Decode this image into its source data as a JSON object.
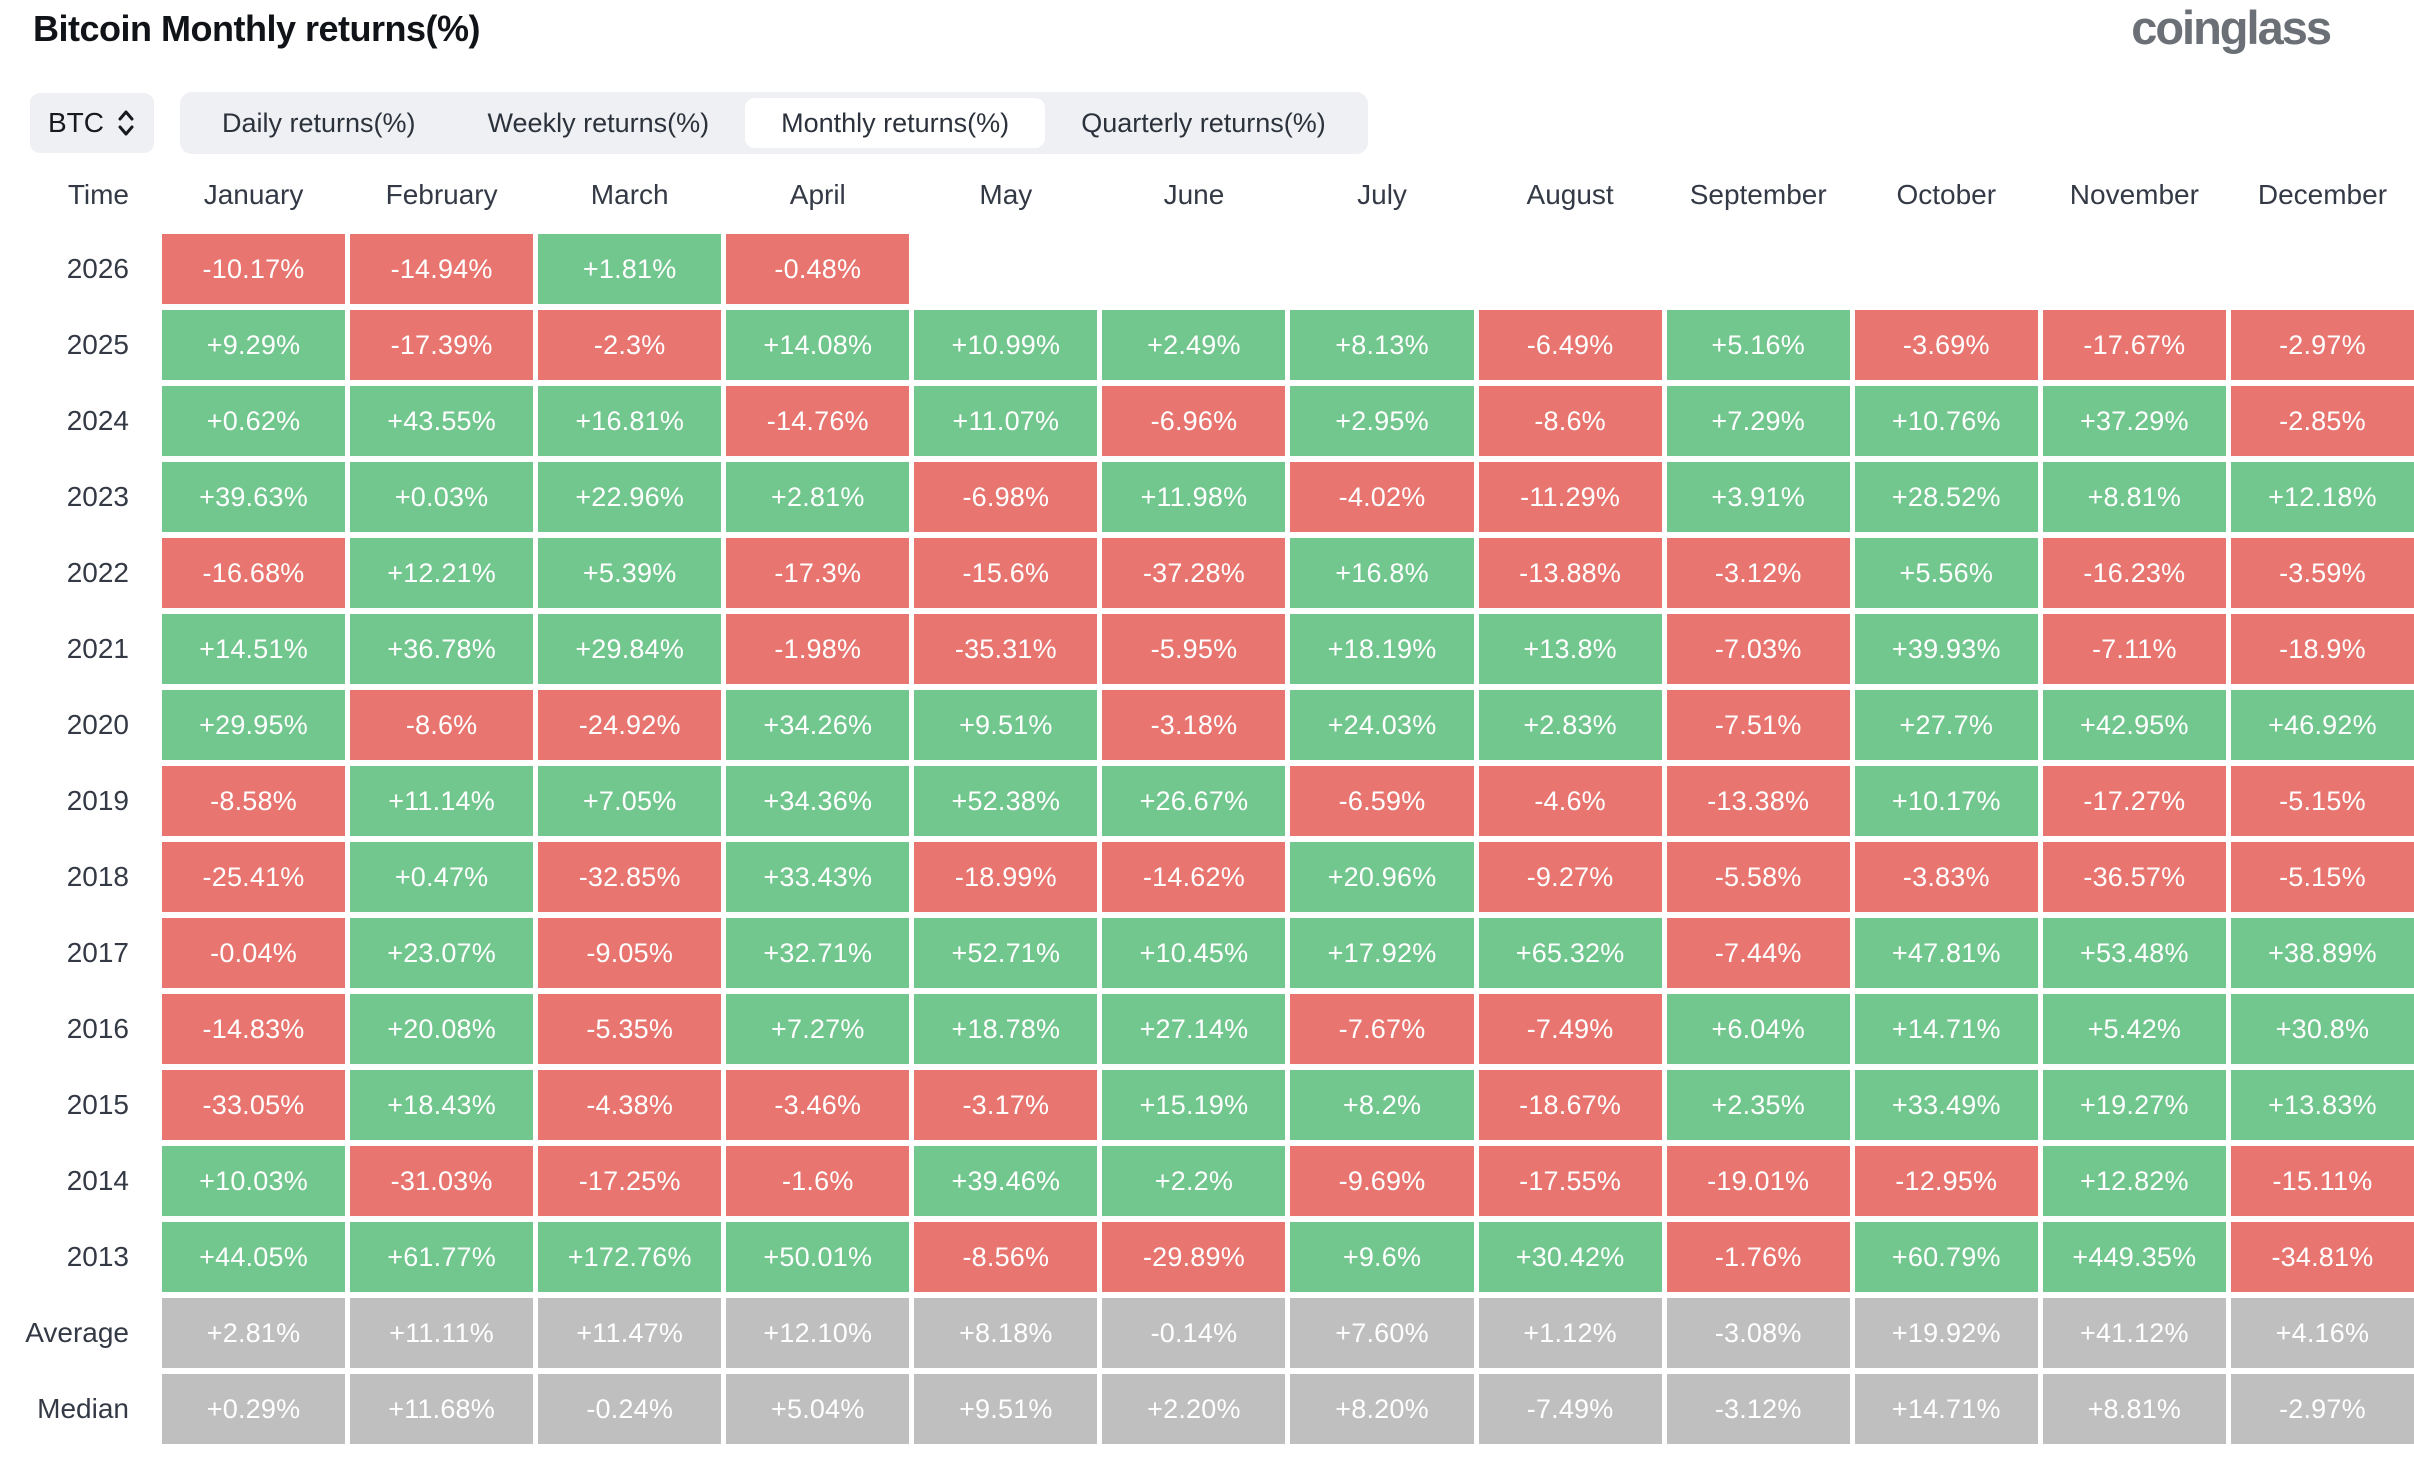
{
  "header": {
    "title": "Bitcoin Monthly returns(%)",
    "logo_text": "coinglass"
  },
  "controls": {
    "symbol_selector": {
      "label": "BTC"
    },
    "tabs": [
      {
        "label": "Daily returns(%)"
      },
      {
        "label": "Weekly returns(%)"
      },
      {
        "label": "Monthly returns(%)"
      },
      {
        "label": "Quarterly returns(%)"
      }
    ],
    "active_tab_index": 2
  },
  "colors": {
    "positive": "#72c78e",
    "negative": "#e8756f",
    "summary": "#bfbfbf",
    "cell_text": "#ffffff"
  },
  "chart_data": {
    "type": "heatmap",
    "title": "Bitcoin Monthly returns(%)",
    "columns": [
      "Time",
      "January",
      "February",
      "March",
      "April",
      "May",
      "June",
      "July",
      "August",
      "September",
      "October",
      "November",
      "December"
    ],
    "rows": [
      {
        "label": "2026",
        "kind": "year",
        "values": [
          "-10.17%",
          "-14.94%",
          "+1.81%",
          "-0.48%",
          null,
          null,
          null,
          null,
          null,
          null,
          null,
          null
        ]
      },
      {
        "label": "2025",
        "kind": "year",
        "values": [
          "+9.29%",
          "-17.39%",
          "-2.3%",
          "+14.08%",
          "+10.99%",
          "+2.49%",
          "+8.13%",
          "-6.49%",
          "+5.16%",
          "-3.69%",
          "-17.67%",
          "-2.97%"
        ]
      },
      {
        "label": "2024",
        "kind": "year",
        "values": [
          "+0.62%",
          "+43.55%",
          "+16.81%",
          "-14.76%",
          "+11.07%",
          "-6.96%",
          "+2.95%",
          "-8.6%",
          "+7.29%",
          "+10.76%",
          "+37.29%",
          "-2.85%"
        ]
      },
      {
        "label": "2023",
        "kind": "year",
        "values": [
          "+39.63%",
          "+0.03%",
          "+22.96%",
          "+2.81%",
          "-6.98%",
          "+11.98%",
          "-4.02%",
          "-11.29%",
          "+3.91%",
          "+28.52%",
          "+8.81%",
          "+12.18%"
        ]
      },
      {
        "label": "2022",
        "kind": "year",
        "values": [
          "-16.68%",
          "+12.21%",
          "+5.39%",
          "-17.3%",
          "-15.6%",
          "-37.28%",
          "+16.8%",
          "-13.88%",
          "-3.12%",
          "+5.56%",
          "-16.23%",
          "-3.59%"
        ]
      },
      {
        "label": "2021",
        "kind": "year",
        "values": [
          "+14.51%",
          "+36.78%",
          "+29.84%",
          "-1.98%",
          "-35.31%",
          "-5.95%",
          "+18.19%",
          "+13.8%",
          "-7.03%",
          "+39.93%",
          "-7.11%",
          "-18.9%"
        ]
      },
      {
        "label": "2020",
        "kind": "year",
        "values": [
          "+29.95%",
          "-8.6%",
          "-24.92%",
          "+34.26%",
          "+9.51%",
          "-3.18%",
          "+24.03%",
          "+2.83%",
          "-7.51%",
          "+27.7%",
          "+42.95%",
          "+46.92%"
        ]
      },
      {
        "label": "2019",
        "kind": "year",
        "values": [
          "-8.58%",
          "+11.14%",
          "+7.05%",
          "+34.36%",
          "+52.38%",
          "+26.67%",
          "-6.59%",
          "-4.6%",
          "-13.38%",
          "+10.17%",
          "-17.27%",
          "-5.15%"
        ]
      },
      {
        "label": "2018",
        "kind": "year",
        "values": [
          "-25.41%",
          "+0.47%",
          "-32.85%",
          "+33.43%",
          "-18.99%",
          "-14.62%",
          "+20.96%",
          "-9.27%",
          "-5.58%",
          "-3.83%",
          "-36.57%",
          "-5.15%"
        ]
      },
      {
        "label": "2017",
        "kind": "year",
        "values": [
          "-0.04%",
          "+23.07%",
          "-9.05%",
          "+32.71%",
          "+52.71%",
          "+10.45%",
          "+17.92%",
          "+65.32%",
          "-7.44%",
          "+47.81%",
          "+53.48%",
          "+38.89%"
        ]
      },
      {
        "label": "2016",
        "kind": "year",
        "values": [
          "-14.83%",
          "+20.08%",
          "-5.35%",
          "+7.27%",
          "+18.78%",
          "+27.14%",
          "-7.67%",
          "-7.49%",
          "+6.04%",
          "+14.71%",
          "+5.42%",
          "+30.8%"
        ]
      },
      {
        "label": "2015",
        "kind": "year",
        "values": [
          "-33.05%",
          "+18.43%",
          "-4.38%",
          "-3.46%",
          "-3.17%",
          "+15.19%",
          "+8.2%",
          "-18.67%",
          "+2.35%",
          "+33.49%",
          "+19.27%",
          "+13.83%"
        ]
      },
      {
        "label": "2014",
        "kind": "year",
        "values": [
          "+10.03%",
          "-31.03%",
          "-17.25%",
          "-1.6%",
          "+39.46%",
          "+2.2%",
          "-9.69%",
          "-17.55%",
          "-19.01%",
          "-12.95%",
          "+12.82%",
          "-15.11%"
        ]
      },
      {
        "label": "2013",
        "kind": "year",
        "values": [
          "+44.05%",
          "+61.77%",
          "+172.76%",
          "+50.01%",
          "-8.56%",
          "-29.89%",
          "+9.6%",
          "+30.42%",
          "-1.76%",
          "+60.79%",
          "+449.35%",
          "-34.81%"
        ]
      },
      {
        "label": "Average",
        "kind": "summary",
        "values": [
          "+2.81%",
          "+11.11%",
          "+11.47%",
          "+12.10%",
          "+8.18%",
          "-0.14%",
          "+7.60%",
          "+1.12%",
          "-3.08%",
          "+19.92%",
          "+41.12%",
          "+4.16%"
        ]
      },
      {
        "label": "Median",
        "kind": "summary",
        "values": [
          "+0.29%",
          "+11.68%",
          "-0.24%",
          "+5.04%",
          "+9.51%",
          "+2.20%",
          "+8.20%",
          "-7.49%",
          "-3.12%",
          "+14.71%",
          "+8.81%",
          "-2.97%"
        ]
      }
    ]
  }
}
